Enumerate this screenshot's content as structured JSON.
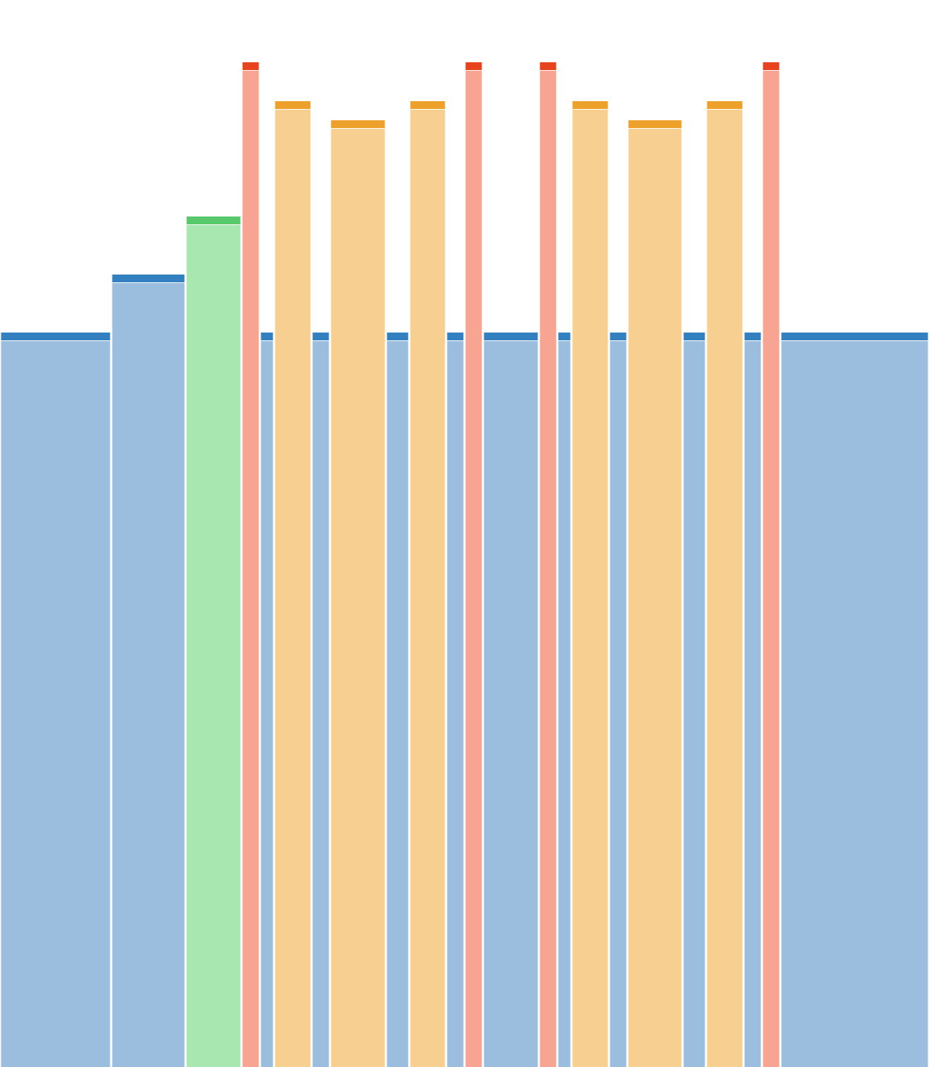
{
  "chart_data": {
    "type": "bar",
    "title": "",
    "xlabel": "",
    "ylabel": "",
    "grid": false,
    "legend": "none",
    "ylim": [
      0,
      1420
    ],
    "bars": [
      {
        "x0": 0,
        "x1": 157,
        "value": 1038,
        "group": "blue"
      },
      {
        "x0": 157,
        "x1": 262,
        "value": 1120,
        "group": "blue"
      },
      {
        "x0": 262,
        "x1": 341,
        "value": 1202,
        "group": "green"
      },
      {
        "x0": 341,
        "x1": 367,
        "value": 1420,
        "group": "red"
      },
      {
        "x0": 367,
        "x1": 387,
        "value": 1038,
        "group": "blue"
      },
      {
        "x0": 387,
        "x1": 440,
        "value": 1365,
        "group": "orange"
      },
      {
        "x0": 440,
        "x1": 466,
        "value": 1038,
        "group": "blue"
      },
      {
        "x0": 466,
        "x1": 545,
        "value": 1338,
        "group": "orange"
      },
      {
        "x0": 545,
        "x1": 578,
        "value": 1038,
        "group": "blue"
      },
      {
        "x0": 578,
        "x1": 630,
        "value": 1365,
        "group": "orange"
      },
      {
        "x0": 630,
        "x1": 656,
        "value": 1038,
        "group": "blue"
      },
      {
        "x0": 656,
        "x1": 682,
        "value": 1420,
        "group": "red"
      },
      {
        "x0": 682,
        "x1": 761,
        "value": 1038,
        "group": "blue"
      },
      {
        "x0": 761,
        "x1": 787,
        "value": 1420,
        "group": "red"
      },
      {
        "x0": 787,
        "x1": 807,
        "value": 1038,
        "group": "blue"
      },
      {
        "x0": 807,
        "x1": 860,
        "value": 1365,
        "group": "orange"
      },
      {
        "x0": 860,
        "x1": 886,
        "value": 1038,
        "group": "blue"
      },
      {
        "x0": 886,
        "x1": 964,
        "value": 1338,
        "group": "orange"
      },
      {
        "x0": 964,
        "x1": 997,
        "value": 1038,
        "group": "blue"
      },
      {
        "x0": 997,
        "x1": 1050,
        "value": 1365,
        "group": "orange"
      },
      {
        "x0": 1050,
        "x1": 1076,
        "value": 1038,
        "group": "blue"
      },
      {
        "x0": 1076,
        "x1": 1102,
        "value": 1420,
        "group": "red"
      },
      {
        "x0": 1102,
        "x1": 1312,
        "value": 1038,
        "group": "blue"
      }
    ],
    "colors": {
      "blue": {
        "fill": "#9bbedf",
        "cap": "#3380c1"
      },
      "green": {
        "fill": "#a9e7b0",
        "cap": "#57c96a"
      },
      "red": {
        "fill": "#f7a592",
        "cap": "#e8431f"
      },
      "orange": {
        "fill": "#f7d091",
        "cap": "#eea12a"
      }
    }
  }
}
